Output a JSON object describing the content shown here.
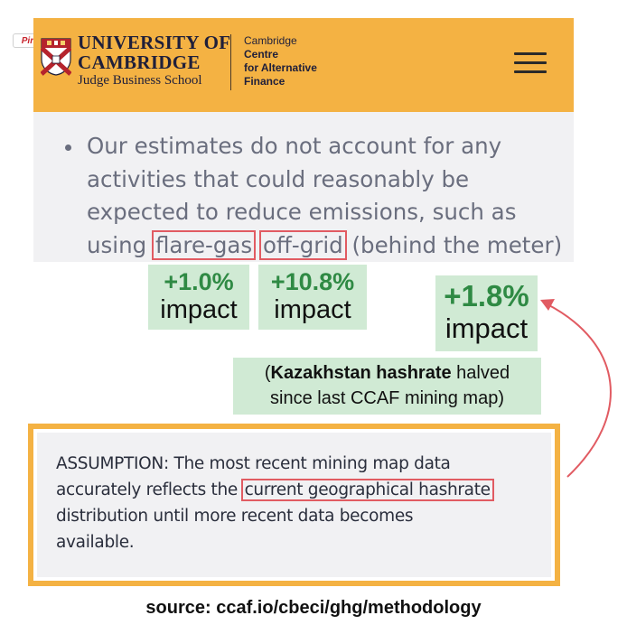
{
  "pin_button": {
    "label": "Pin it"
  },
  "header": {
    "university_line1": "UNIVERSITY OF",
    "university_line2": "CAMBRIDGE",
    "school": "Judge Business School",
    "centre_line1": "Cambridge",
    "centre_line2": "Centre",
    "centre_line3": "for Alternative",
    "centre_line4": "Finance",
    "menu_icon": "hamburger-menu-icon",
    "background_color": "#f4b243"
  },
  "bullet": {
    "line1": "Our estimates do not account for any",
    "line2": "activities that could reasonably be",
    "line3": "expected to reduce emissions, such as",
    "line4_prefix": "using ",
    "highlight_flare": "flare-gas",
    "highlight_offgrid": "off-grid",
    "line4_suffix": " (behind the meter)"
  },
  "impacts": [
    {
      "value": "+1.0%",
      "label": "impact"
    },
    {
      "value": "+10.8%",
      "label": "impact"
    },
    {
      "value": "+1.8%",
      "label": "impact"
    }
  ],
  "kazakhstan_note": {
    "open": "(",
    "bold": "Kazakhstan hashrate",
    "rest1": " halved",
    "line2": "since last CCAF mining map)"
  },
  "assumption": {
    "line1": "ASSUMPTION: The most recent mining map data",
    "line2_prefix": "accurately reflects the ",
    "line2_highlight": "current geographical hashrate",
    "line3": "distribution until more recent data becomes",
    "line4": "available."
  },
  "source": "source: ccaf.io/cbeci/ghg/methodology",
  "colors": {
    "highlight_border": "#e15b62",
    "green_box": "#d0ead4",
    "green_text": "#2f8a44",
    "accent_orange": "#f4b243"
  }
}
